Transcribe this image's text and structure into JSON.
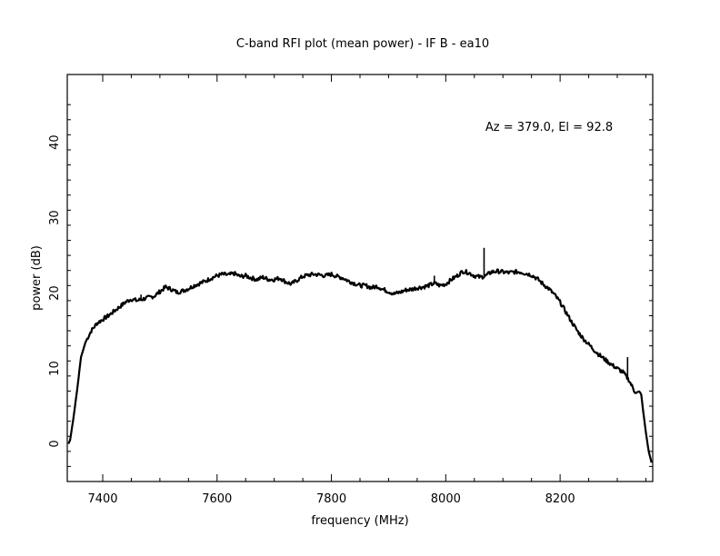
{
  "chart_data": {
    "type": "line",
    "title": "C-band RFI plot (mean power) - IF B - ea10",
    "xlabel": "frequency (MHz)",
    "ylabel": "power (dB)",
    "annotation": "Az = 379.0, El = 92.8",
    "xlim": [
      7338,
      8362
    ],
    "ylim": [
      -5,
      49
    ],
    "x_ticks": [
      7400,
      7600,
      7800,
      8000,
      8200
    ],
    "y_ticks": [
      0,
      10,
      20,
      30,
      40
    ],
    "grid": false,
    "line_color": "#000000",
    "series": [
      {
        "x": [
          7340,
          7343,
          7348,
          7355,
          7362,
          7370,
          7380,
          7390,
          7400,
          7410,
          7420,
          7430,
          7440,
          7450,
          7460,
          7470,
          7480,
          7490,
          7500,
          7510,
          7520,
          7530,
          7540,
          7550,
          7560,
          7570,
          7580,
          7590,
          7600,
          7610,
          7620,
          7630,
          7640,
          7650,
          7660,
          7670,
          7680,
          7690,
          7700,
          7710,
          7720,
          7730,
          7740,
          7750,
          7760,
          7770,
          7780,
          7790,
          7800,
          7810,
          7820,
          7830,
          7840,
          7850,
          7860,
          7870,
          7880,
          7890,
          7900,
          7910,
          7920,
          7930,
          7940,
          7950,
          7960,
          7970,
          7980,
          7990,
          8000,
          8010,
          8020,
          8030,
          8040,
          8050,
          8060,
          8070,
          8080,
          8090,
          8100,
          8110,
          8120,
          8130,
          8140,
          8150,
          8160,
          8170,
          8180,
          8190,
          8200,
          8210,
          8220,
          8230,
          8240,
          8250,
          8260,
          8270,
          8280,
          8290,
          8300,
          8310,
          8320,
          8330,
          8335,
          8340,
          8342,
          8345,
          8350,
          8355,
          8360
        ],
        "y": [
          0.0,
          0.5,
          3.0,
          7.0,
          11.5,
          13.5,
          15.0,
          16.0,
          16.5,
          17.0,
          17.6,
          18.2,
          18.8,
          19.2,
          19.0,
          19.2,
          19.4,
          19.6,
          20.2,
          20.8,
          20.5,
          20.1,
          20.3,
          20.6,
          21.0,
          21.3,
          21.6,
          22.0,
          22.3,
          22.5,
          22.4,
          22.6,
          22.2,
          22.3,
          22.0,
          21.8,
          22.1,
          21.8,
          21.8,
          22.0,
          21.5,
          21.2,
          21.7,
          22.2,
          22.4,
          22.5,
          22.4,
          22.3,
          22.5,
          22.2,
          22.0,
          21.6,
          21.3,
          21.0,
          21.0,
          20.7,
          20.9,
          20.5,
          20.2,
          19.9,
          20.1,
          20.4,
          20.5,
          20.7,
          20.8,
          21.0,
          21.3,
          21.0,
          21.2,
          21.8,
          22.3,
          22.9,
          22.7,
          22.3,
          22.1,
          22.3,
          22.8,
          22.9,
          22.8,
          22.7,
          22.8,
          22.8,
          22.6,
          22.4,
          21.9,
          21.2,
          20.6,
          19.8,
          18.8,
          17.5,
          16.2,
          15.0,
          14.0,
          13.2,
          12.4,
          11.7,
          11.1,
          10.5,
          10.0,
          9.5,
          8.5,
          7.0,
          6.8,
          6.8,
          6.5,
          4.5,
          1.5,
          -1.0,
          -2.5
        ]
      }
    ],
    "spikes": [
      {
        "x": 7405,
        "peak": 16.8
      },
      {
        "x": 7467,
        "peak": 19.8
      },
      {
        "x": 7980,
        "peak": 22.3
      },
      {
        "x": 8067,
        "peak": 26.0
      },
      {
        "x": 8318,
        "peak": 11.5
      }
    ]
  }
}
